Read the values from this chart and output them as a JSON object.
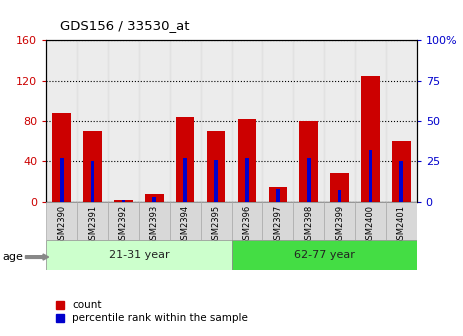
{
  "title": "GDS156 / 33530_at",
  "samples": [
    "GSM2390",
    "GSM2391",
    "GSM2392",
    "GSM2393",
    "GSM2394",
    "GSM2395",
    "GSM2396",
    "GSM2397",
    "GSM2398",
    "GSM2399",
    "GSM2400",
    "GSM2401"
  ],
  "count_values": [
    88,
    70,
    2,
    8,
    84,
    70,
    82,
    14,
    80,
    28,
    125,
    60
  ],
  "percentile_values": [
    27,
    25,
    1,
    3,
    27,
    26,
    27,
    8,
    27,
    7,
    32,
    25
  ],
  "group1_label": "21-31 year",
  "group1_samples": 6,
  "group2_label": "62-77 year",
  "group2_samples": 6,
  "age_label": "age",
  "ylim_left": [
    0,
    160
  ],
  "ylim_right": [
    0,
    100
  ],
  "yticks_left": [
    0,
    40,
    80,
    120,
    160
  ],
  "ytick_labels_right": [
    "0",
    "25",
    "50",
    "75",
    "100%"
  ],
  "count_color": "#cc0000",
  "percentile_color": "#0000cc",
  "bg_color": "#ffffff",
  "group1_bg": "#ccffcc",
  "group2_bg": "#44dd44",
  "tick_label_color_left": "#cc0000",
  "tick_label_color_right": "#0000cc",
  "bar_width": 0.6,
  "blue_bar_width": 0.12,
  "legend_count": "count",
  "legend_percentile": "percentile rank within the sample"
}
